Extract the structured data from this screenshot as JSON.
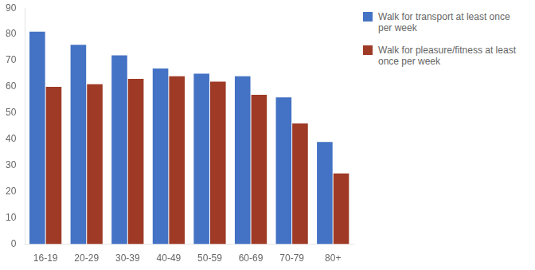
{
  "chart_data": {
    "type": "bar",
    "categories": [
      "16-19",
      "20-29",
      "30-39",
      "40-49",
      "50-59",
      "60-69",
      "70-79",
      "80+"
    ],
    "series": [
      {
        "name": "Walk for transport at least once\nper week",
        "color": "#4472C4",
        "values": [
          81,
          76,
          72,
          67,
          65,
          64,
          56,
          39
        ]
      },
      {
        "name": "Walk for pleasure/fitness at least\nonce per week",
        "color": "#9E3A26",
        "values": [
          60,
          61,
          63,
          64,
          62,
          57,
          46,
          27
        ]
      }
    ],
    "ylim": [
      0,
      90
    ],
    "yticks": [
      0,
      10,
      20,
      30,
      40,
      50,
      60,
      70,
      80,
      90
    ],
    "grid": false,
    "legend": "right"
  }
}
